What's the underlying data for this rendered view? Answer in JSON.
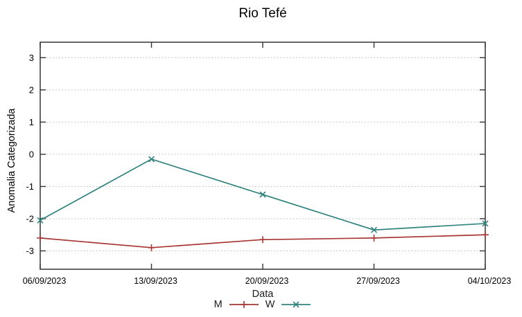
{
  "chart_data": {
    "type": "line",
    "title": "Rio Tefé",
    "xlabel": "Data",
    "ylabel": "Anomalia Categorizada",
    "categories": [
      "06/09/2023",
      "13/09/2023",
      "20/09/2023",
      "27/09/2023",
      "04/10/2023"
    ],
    "series": [
      {
        "name": "M",
        "color": "#a93434",
        "marker": "plus",
        "values": [
          -2.6,
          -2.9,
          -2.65,
          -2.6,
          -2.5
        ]
      },
      {
        "name": "W",
        "color": "#31837f",
        "marker": "cross",
        "values": [
          -2.05,
          -0.15,
          -1.25,
          -2.35,
          -2.15
        ]
      }
    ],
    "yticks": [
      -3,
      -2,
      -1,
      0,
      1,
      2,
      3
    ],
    "ylim": [
      -3.57,
      3.48
    ],
    "grid": "dotted-horizontal",
    "legend_position": "bottom-center",
    "colors": {
      "axis": "#333333",
      "gridline": "#b8b8b8",
      "text": "#000000"
    }
  }
}
